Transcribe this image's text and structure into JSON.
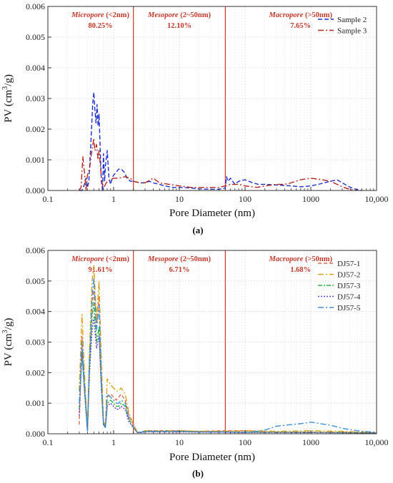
{
  "chart_data": [
    {
      "type": "line",
      "panel_label": "(a)",
      "xlabel": "Pore Diameter (nm)",
      "ylabel_main": "PV (cm",
      "ylabel_sup": "3",
      "ylabel_tail": "/g)",
      "x_scale": "log",
      "xlim": [
        0.1,
        10000
      ],
      "ylim": [
        0,
        0.006
      ],
      "x_ticks": [
        0.1,
        1,
        10,
        100,
        1000,
        10000
      ],
      "x_tick_labels": [
        "0.1",
        "1",
        "10",
        "100",
        "1000",
        "10,000"
      ],
      "y_ticks": [
        0,
        0.001,
        0.002,
        0.003,
        0.004,
        0.005,
        0.006
      ],
      "y_tick_labels": [
        "0.000",
        "0.001",
        "0.002",
        "0.003",
        "0.004",
        "0.005",
        "0.006"
      ],
      "grid": true,
      "legend_position": "top-right",
      "boundaries": [
        2,
        50
      ],
      "regions": [
        {
          "name": "Micropore",
          "range": "(<2nm)",
          "percent": "80.25%",
          "x_center": 0.63
        },
        {
          "name": "Mesopore",
          "range": "(2~50nm)",
          "percent": "12.10%",
          "x_center": 10
        },
        {
          "name": "Macropore",
          "range": "(>50nm)",
          "percent": "7.65%",
          "x_center": 700
        }
      ],
      "series": [
        {
          "name": "Sample 2",
          "color": "#1f2fd0",
          "dash": "6,3",
          "x": [
            0.3,
            0.33,
            0.36,
            0.38,
            0.4,
            0.42,
            0.45,
            0.48,
            0.5,
            0.52,
            0.54,
            0.56,
            0.58,
            0.6,
            0.62,
            0.65,
            0.68,
            0.7,
            0.73,
            0.75,
            0.8,
            0.85,
            0.9,
            0.95,
            1.0,
            1.1,
            1.2,
            1.3,
            1.45,
            1.6,
            1.8,
            2.0,
            2.5,
            3,
            3.5,
            4,
            5,
            6,
            8,
            10,
            15,
            20,
            30,
            40,
            50,
            52,
            55,
            60,
            70,
            80,
            100,
            130,
            160,
            200,
            300,
            500,
            700,
            1000,
            1300,
            1600,
            2000,
            2500,
            3000,
            4000,
            5000,
            6000
          ],
          "y": [
            0,
            0,
            0.0002,
            0.0004,
            0.0001,
            0.0003,
            0.0015,
            0.0028,
            0.0032,
            0.0026,
            0.0022,
            0.0028,
            0.0021,
            0.0025,
            0.0016,
            0.0003,
            0,
            0.0012,
            0.0003,
            0.0008,
            0.0013,
            0.0004,
            0.0002,
            0.0004,
            0.0005,
            0.0006,
            0.0007,
            0.0007,
            0.0006,
            0.0004,
            0.0003,
            0.0003,
            0.00025,
            0.00025,
            0.0003,
            0.00025,
            0.0002,
            0.00015,
            0.0001,
            0.0001,
            8e-05,
            5e-05,
            4e-05,
            4e-05,
            8e-05,
            0.00045,
            0.0003,
            0.0004,
            0.0002,
            0.0003,
            0.00035,
            0.00025,
            0.0002,
            0.0002,
            0.00018,
            0.00015,
            0.00012,
            0.00015,
            0.0002,
            0.00025,
            0.0003,
            0.00035,
            0.00025,
            0.0001,
            3e-05,
            0
          ]
        },
        {
          "name": "Sample 3",
          "color": "#b5261e",
          "dash": "8,3,2,3",
          "x": [
            0.3,
            0.32,
            0.34,
            0.36,
            0.38,
            0.4,
            0.43,
            0.46,
            0.5,
            0.52,
            0.55,
            0.58,
            0.6,
            0.63,
            0.66,
            0.7,
            0.75,
            0.8,
            0.9,
            1.0,
            1.2,
            1.5,
            1.8,
            2.0,
            2.5,
            3,
            4,
            5,
            7,
            10,
            15,
            20,
            30,
            40,
            50,
            60,
            80,
            100,
            150,
            200,
            300,
            400,
            500,
            700,
            1000,
            1500,
            2000,
            3000,
            4000,
            5000
          ],
          "y": [
            0,
            0.0001,
            0.0011,
            0.0006,
            0,
            0.0005,
            0.0007,
            0.0012,
            0.0017,
            0.0013,
            0.0015,
            0.001,
            0.0013,
            0.0008,
            0.0003,
            5e-05,
            0.0002,
            0.0003,
            0.00035,
            0.0004,
            0.0004,
            0.00045,
            0.0004,
            0.0003,
            0.00025,
            0.00025,
            0.0004,
            0.00025,
            0.0002,
            0.00015,
            0.0001,
            0.0001,
            0.0001,
            0.0001,
            0.00015,
            0.0002,
            0.0002,
            0.00015,
            0.0001,
            0.00015,
            0.0002,
            0.0002,
            0.00025,
            0.00035,
            0.0004,
            0.00035,
            0.0003,
            0.00012,
            3e-05,
            0
          ]
        }
      ]
    },
    {
      "type": "line",
      "panel_label": "(b)",
      "xlabel": "Pore Diameter (nm)",
      "ylabel_main": "PV (cm",
      "ylabel_sup": "3",
      "ylabel_tail": "/g)",
      "x_scale": "log",
      "xlim": [
        0.1,
        10000
      ],
      "ylim": [
        0,
        0.006
      ],
      "x_ticks": [
        0.1,
        1,
        10,
        100,
        1000,
        10000
      ],
      "x_tick_labels": [
        "0.1",
        "1",
        "10",
        "100",
        "1000",
        "10,000"
      ],
      "y_ticks": [
        0,
        0.001,
        0.002,
        0.003,
        0.004,
        0.005,
        0.006
      ],
      "y_tick_labels": [
        "0.000",
        "0.001",
        "0.002",
        "0.003",
        "0.004",
        "0.005",
        "0.006"
      ],
      "grid": true,
      "legend_position": "top-right",
      "boundaries": [
        2,
        50
      ],
      "regions": [
        {
          "name": "Micropore",
          "range": "(<2nm)",
          "percent": "91.61%",
          "x_center": 0.63
        },
        {
          "name": "Mesopore",
          "range": "(2~50nm)",
          "percent": "6.71%",
          "x_center": 10
        },
        {
          "name": "Macropore",
          "range": "(>50nm)",
          "percent": "1.68%",
          "x_center": 700
        }
      ],
      "series": [
        {
          "name": "DJ57-1",
          "color": "#e06a50",
          "dash": "5,3",
          "x": [
            0.3,
            0.33,
            0.36,
            0.4,
            0.43,
            0.47,
            0.5,
            0.55,
            0.6,
            0.65,
            0.7,
            0.75,
            0.8,
            0.9,
            1.0,
            1.1,
            1.2,
            1.3,
            1.5,
            1.7,
            2.0,
            2.3,
            2.6,
            3,
            5,
            10,
            20,
            50,
            100,
            300,
            1000,
            3000,
            10000
          ],
          "y": [
            0.0003,
            0.0032,
            0.0015,
            0.0001,
            0.0025,
            0.0042,
            0.0047,
            0.0035,
            0.0045,
            0.002,
            0.0004,
            0.0002,
            0.0012,
            0.0013,
            0.0012,
            0.0011,
            0.0012,
            0.0013,
            0.0011,
            0.0006,
            0.0003,
            5e-05,
            5e-05,
            0.0001,
            0.0001,
            0.0001,
            8e-05,
            0.0001,
            0.0001,
            5e-05,
            5e-05,
            5e-05,
            2e-05
          ]
        },
        {
          "name": "DJ57-2",
          "color": "#d9a21a",
          "dash": "8,3,2,3",
          "x": [
            0.3,
            0.33,
            0.36,
            0.4,
            0.43,
            0.47,
            0.5,
            0.55,
            0.6,
            0.65,
            0.7,
            0.75,
            0.8,
            0.9,
            1.0,
            1.1,
            1.2,
            1.3,
            1.5,
            1.7,
            2.0,
            2.3,
            2.6,
            3,
            5,
            10,
            20,
            50,
            100,
            300,
            1000,
            3000,
            10000
          ],
          "y": [
            0.0014,
            0.0039,
            0.002,
            0.0001,
            0.0028,
            0.005,
            0.0055,
            0.0037,
            0.005,
            0.0024,
            0.0004,
            0.0003,
            0.0018,
            0.0016,
            0.0015,
            0.0014,
            0.0014,
            0.0015,
            0.0013,
            0.0007,
            0.0003,
            5e-05,
            5e-05,
            0.0001,
            8e-05,
            0.0001,
            8e-05,
            8e-05,
            0.0001,
            8e-05,
            0.0001,
            8e-05,
            3e-05
          ]
        },
        {
          "name": "DJ57-3",
          "color": "#2db83d",
          "dash": "6,2,2,2",
          "x": [
            0.3,
            0.33,
            0.36,
            0.4,
            0.43,
            0.47,
            0.5,
            0.55,
            0.6,
            0.65,
            0.7,
            0.75,
            0.8,
            0.9,
            1.0,
            1.1,
            1.2,
            1.3,
            1.5,
            1.7,
            2.0,
            2.3,
            2.6,
            3,
            5,
            10,
            20,
            50,
            100,
            300,
            1000,
            3000,
            10000
          ],
          "y": [
            0.0008,
            0.0026,
            0.0015,
            0.0001,
            0.0022,
            0.0038,
            0.0043,
            0.003,
            0.0035,
            0.0016,
            0.0003,
            0.0002,
            0.001,
            0.0011,
            0.001,
            0.0009,
            0.0009,
            0.001,
            0.0009,
            0.0005,
            0.0002,
            4e-05,
            4e-05,
            8e-05,
            8e-05,
            8e-05,
            6e-05,
            6e-05,
            5e-05,
            5e-05,
            5e-05,
            4e-05,
            2e-05
          ]
        },
        {
          "name": "DJ57-4",
          "color": "#6a3fc8",
          "dash": "2,2",
          "x": [
            0.3,
            0.33,
            0.36,
            0.4,
            0.43,
            0.47,
            0.5,
            0.55,
            0.6,
            0.65,
            0.7,
            0.75,
            0.8,
            0.9,
            1.0,
            1.1,
            1.2,
            1.3,
            1.5,
            1.7,
            2.0,
            2.3,
            2.6,
            3,
            5,
            10,
            20,
            50,
            100,
            300,
            1000,
            3000,
            10000
          ],
          "y": [
            0.0006,
            0.0028,
            0.0014,
            0.0001,
            0.002,
            0.0034,
            0.0038,
            0.0028,
            0.0032,
            0.0015,
            0.0003,
            0.0002,
            0.0009,
            0.001,
            0.0009,
            0.0008,
            0.0008,
            0.0009,
            0.0008,
            0.0004,
            0.0002,
            4e-05,
            4e-05,
            6e-05,
            6e-05,
            6e-05,
            5e-05,
            5e-05,
            4e-05,
            4e-05,
            4e-05,
            3e-05,
            2e-05
          ]
        },
        {
          "name": "DJ57-5",
          "color": "#3b8fd6",
          "dash": "8,3,2,3",
          "x": [
            0.3,
            0.33,
            0.36,
            0.4,
            0.43,
            0.47,
            0.5,
            0.55,
            0.6,
            0.65,
            0.7,
            0.75,
            0.8,
            0.9,
            1.0,
            1.1,
            1.2,
            1.3,
            1.5,
            1.7,
            2.0,
            2.3,
            2.6,
            3,
            5,
            10,
            20,
            50,
            100,
            150,
            200,
            300,
            500,
            700,
            1000,
            1500,
            2000,
            3000,
            5000,
            10000
          ],
          "y": [
            0.001,
            0.003,
            0.0017,
            0.0001,
            0.0024,
            0.0045,
            0.0051,
            0.0034,
            0.0042,
            0.0019,
            0.0004,
            0.0002,
            0.0013,
            0.0012,
            0.0011,
            0.001,
            0.001,
            0.0011,
            0.001,
            0.0005,
            0.0002,
            5e-05,
            5e-05,
            8e-05,
            8e-05,
            8e-05,
            6e-05,
            6e-05,
            5e-05,
            8e-05,
            0.00012,
            0.00025,
            0.0003,
            0.00033,
            0.00038,
            0.00032,
            0.00028,
            0.00018,
            0.0001,
            4e-05
          ]
        }
      ]
    }
  ]
}
